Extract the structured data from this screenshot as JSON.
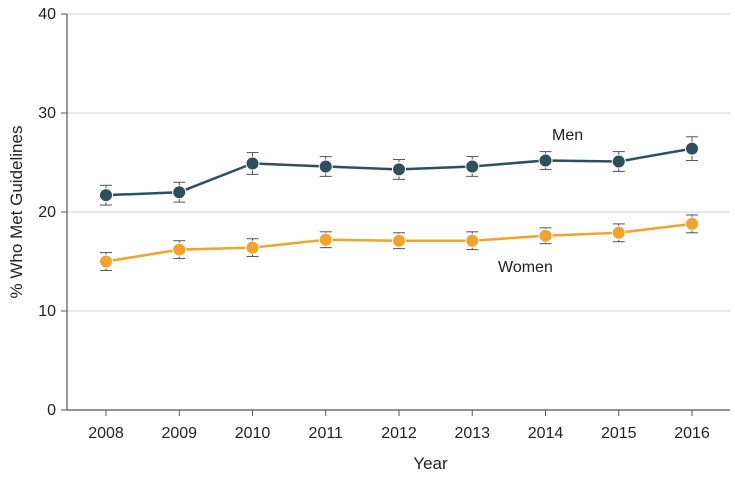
{
  "chart_data": {
    "type": "line",
    "xlabel": "Year",
    "ylabel": "% Who Met Guidelines",
    "ylim": [
      0,
      40
    ],
    "yticks": [
      0,
      10,
      20,
      30,
      40
    ],
    "grid": true,
    "legend": "none",
    "categories": [
      "2008",
      "2009",
      "2010",
      "2011",
      "2012",
      "2013",
      "2014",
      "2015",
      "2016"
    ],
    "series": [
      {
        "name": "Men",
        "color": "#2f4f5a",
        "values": [
          21.7,
          22.0,
          24.9,
          24.6,
          24.3,
          24.6,
          25.2,
          25.1,
          26.4
        ],
        "error": [
          1.0,
          1.0,
          1.1,
          1.0,
          1.0,
          1.0,
          0.9,
          1.0,
          1.2
        ]
      },
      {
        "name": "Women",
        "color": "#f3a32a",
        "values": [
          15.0,
          16.2,
          16.4,
          17.2,
          17.1,
          17.1,
          17.6,
          17.9,
          18.8
        ],
        "error": [
          0.9,
          0.9,
          0.9,
          0.8,
          0.8,
          0.9,
          0.8,
          0.9,
          0.9
        ]
      }
    ]
  }
}
